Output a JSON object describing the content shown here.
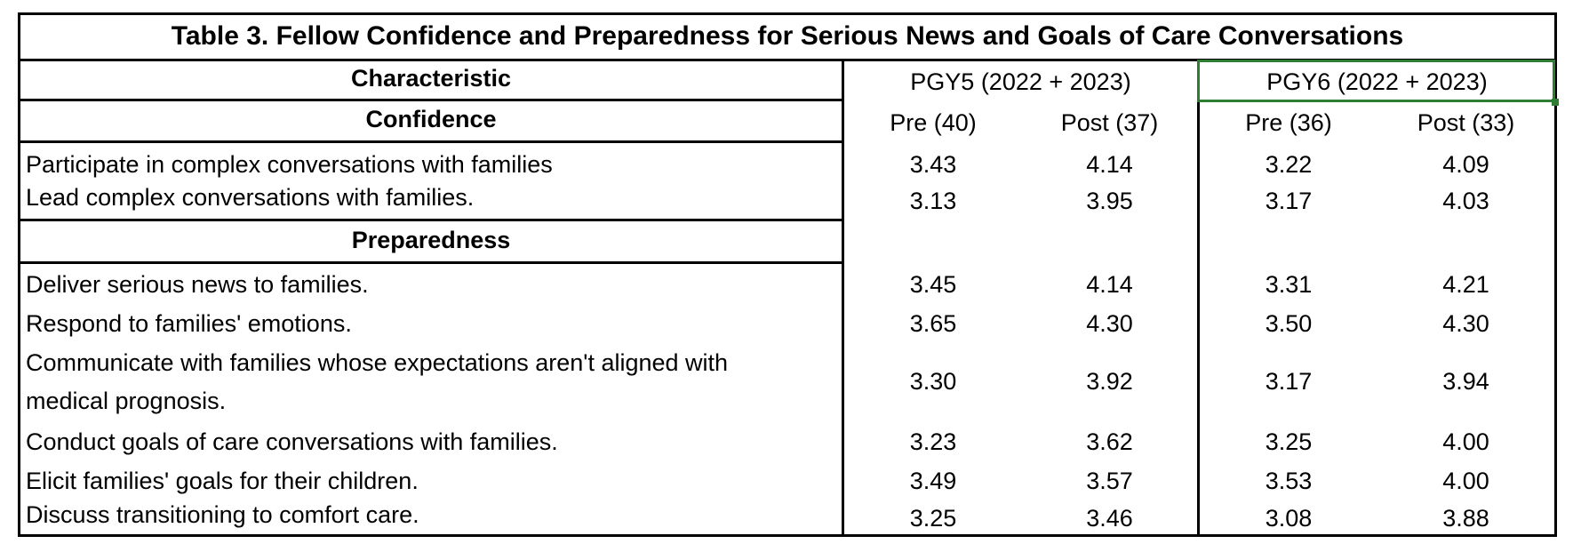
{
  "title": "Table 3. Fellow Confidence and Preparedness for Serious News and Goals of Care Conversations",
  "headers": {
    "characteristic": "Characteristic",
    "group1": "PGY5 (2022 + 2023)",
    "group2": "PGY6 (2022 + 2023)",
    "sub": [
      "Pre (40)",
      "Post (37)",
      "Pre (36)",
      "Post (33)"
    ]
  },
  "sections": {
    "confidence": "Confidence",
    "preparedness": "Preparedness"
  },
  "rows": [
    {
      "label": "Participate in complex conversations with families",
      "values": [
        "3.43",
        "4.14",
        "3.22",
        "4.09"
      ]
    },
    {
      "label": "Lead complex conversations with families.",
      "values": [
        "3.13",
        "3.95",
        "3.17",
        "4.03"
      ]
    },
    {
      "label": "Deliver serious news to families.",
      "values": [
        "3.45",
        "4.14",
        "3.31",
        "4.21"
      ]
    },
    {
      "label": "Respond to families' emotions.",
      "values": [
        "3.65",
        "4.30",
        "3.50",
        "4.30"
      ]
    },
    {
      "label_line1": "Communicate with families whose expectations aren't aligned with",
      "label_line2": "medical prognosis.",
      "values": [
        "3.30",
        "3.92",
        "3.17",
        "3.94"
      ]
    },
    {
      "label": "Conduct goals of care conversations with families.",
      "values": [
        "3.23",
        "3.62",
        "3.25",
        "4.00"
      ]
    },
    {
      "label": "Elicit families' goals for their children.",
      "values": [
        "3.49",
        "3.57",
        "3.53",
        "4.00"
      ]
    },
    {
      "label": "Discuss transitioning to comfort care.",
      "values": [
        "3.25",
        "3.46",
        "3.08",
        "3.88"
      ]
    }
  ]
}
